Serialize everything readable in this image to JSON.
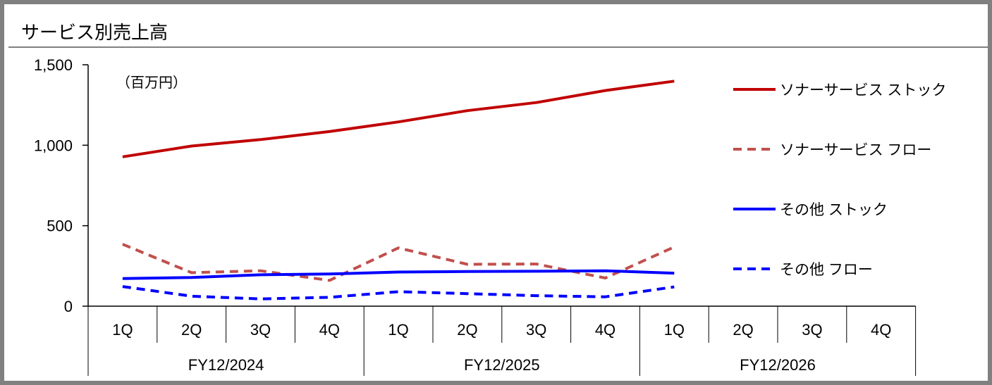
{
  "title": "サービス別売上高",
  "chart_data": {
    "type": "line",
    "unit_label": "（百万円）",
    "categories": [
      "1Q",
      "2Q",
      "3Q",
      "4Q",
      "1Q",
      "2Q",
      "3Q",
      "4Q",
      "1Q",
      "2Q",
      "3Q",
      "4Q"
    ],
    "groups": [
      {
        "label": "FY12/2024",
        "span": 4
      },
      {
        "label": "FY12/2025",
        "span": 4
      },
      {
        "label": "FY12/2026",
        "span": 4
      }
    ],
    "ylim": [
      0,
      1500
    ],
    "yticks": [
      0,
      500,
      1000,
      1500
    ],
    "ytick_labels": [
      "0",
      "500",
      "1,000",
      "1,500"
    ],
    "grid": false,
    "legend_position": "right",
    "series": [
      {
        "name": "ソナーサービス ストック",
        "color": "#c00000",
        "dash": "solid",
        "values": [
          928,
          995,
          1035,
          1085,
          1145,
          1215,
          1265,
          1340,
          1398,
          null,
          null,
          null
        ]
      },
      {
        "name": "ソナーサービス フロー",
        "color": "#c0504d",
        "dash": "dashed",
        "values": [
          385,
          208,
          220,
          160,
          362,
          260,
          262,
          175,
          368,
          null,
          null,
          null
        ]
      },
      {
        "name": "その他 ストック",
        "color": "#0000ff",
        "dash": "solid",
        "values": [
          172,
          178,
          195,
          200,
          212,
          215,
          217,
          220,
          205,
          null,
          null,
          null
        ]
      },
      {
        "name": "その他 フロー",
        "color": "#0000ff",
        "dash": "dashed",
        "values": [
          122,
          62,
          45,
          55,
          90,
          78,
          65,
          58,
          120,
          null,
          null,
          null
        ]
      }
    ]
  }
}
